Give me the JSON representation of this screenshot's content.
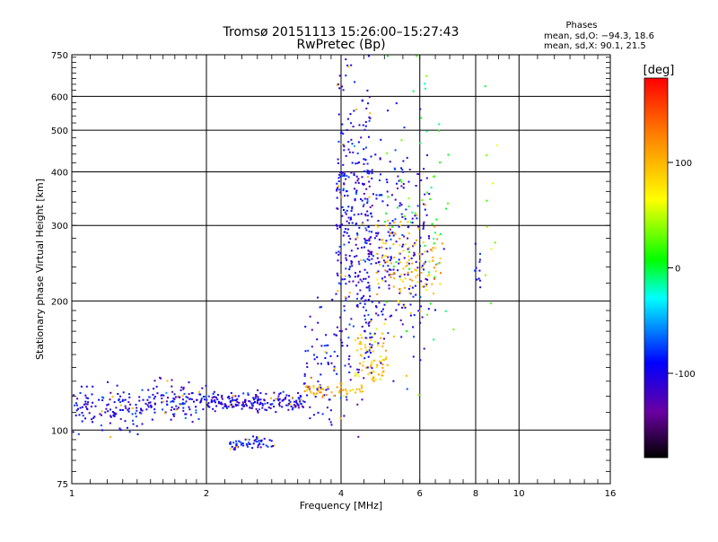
{
  "chart_data": {
    "type": "scatter",
    "title": "Tromsø 20151113 15:26:00–15:27:43",
    "subtitle": "RwPretec (Bp)",
    "xlabel": "Frequency [MHz]",
    "ylabel": "Stationary phase Virtual Height [km]",
    "x_scale": "log",
    "y_scale": "log",
    "xlim": [
      1,
      16
    ],
    "ylim": [
      75,
      750
    ],
    "x_ticks": [
      1,
      2,
      4,
      6,
      8,
      10,
      16
    ],
    "y_ticks": [
      75,
      100,
      200,
      300,
      400,
      500,
      600,
      750
    ],
    "grid": true,
    "phase_legend": {
      "title": "Phases",
      "line_o": "mean, sd,O: −94.3, 18.6",
      "line_x": "mean, sd,X:  90.1, 21.5"
    },
    "colorbar": {
      "label": "[deg]",
      "ticks": [
        100,
        0,
        -100
      ],
      "range": [
        -180,
        180
      ]
    },
    "clusters": [
      {
        "x_range": [
          1.0,
          1.45
        ],
        "y_center": 112,
        "y_spread": 0.06,
        "count": 130,
        "phase": -100
      },
      {
        "x_range": [
          1.45,
          2.0
        ],
        "y_center": 118,
        "y_spread": 0.05,
        "count": 120,
        "phase": -100
      },
      {
        "x_range": [
          2.0,
          3.3
        ],
        "y_center": 116,
        "y_spread": 0.025,
        "count": 200,
        "phase": -105
      },
      {
        "x_range": [
          2.25,
          2.85
        ],
        "y_center": 93,
        "y_spread": 0.015,
        "count": 60,
        "phase": -90
      },
      {
        "x_range": [
          3.3,
          3.9
        ],
        "y_center": 145,
        "y_spread": 0.18,
        "count": 70,
        "phase": -100
      },
      {
        "x_range": [
          3.3,
          4.5
        ],
        "y_center": 124,
        "y_spread": 0.02,
        "count": 55,
        "phase": 100
      },
      {
        "x_range": [
          4.3,
          5.1
        ],
        "y_center": 148,
        "y_spread": 0.08,
        "count": 80,
        "phase": 95
      },
      {
        "x_range": [
          3.9,
          4.7
        ],
        "y_center": 290,
        "y_spread": 0.42,
        "count": 360,
        "phase": -100
      },
      {
        "x_range": [
          4.5,
          6.3
        ],
        "y_center": 270,
        "y_spread": 0.3,
        "count": 240,
        "phase": -100
      },
      {
        "x_range": [
          4.8,
          6.8
        ],
        "y_center": 245,
        "y_spread": 0.12,
        "count": 120,
        "phase": 100
      },
      {
        "x_range": [
          5.0,
          7.2
        ],
        "y_center": 320,
        "y_spread": 0.4,
        "count": 60,
        "phase": 10
      },
      {
        "x_range": [
          7.9,
          8.2
        ],
        "y_center": 240,
        "y_spread": 0.1,
        "count": 12,
        "phase": -100
      },
      {
        "x_range": [
          8.4,
          9.0
        ],
        "y_center": 330,
        "y_spread": 0.25,
        "count": 10,
        "phase": 40
      }
    ]
  }
}
